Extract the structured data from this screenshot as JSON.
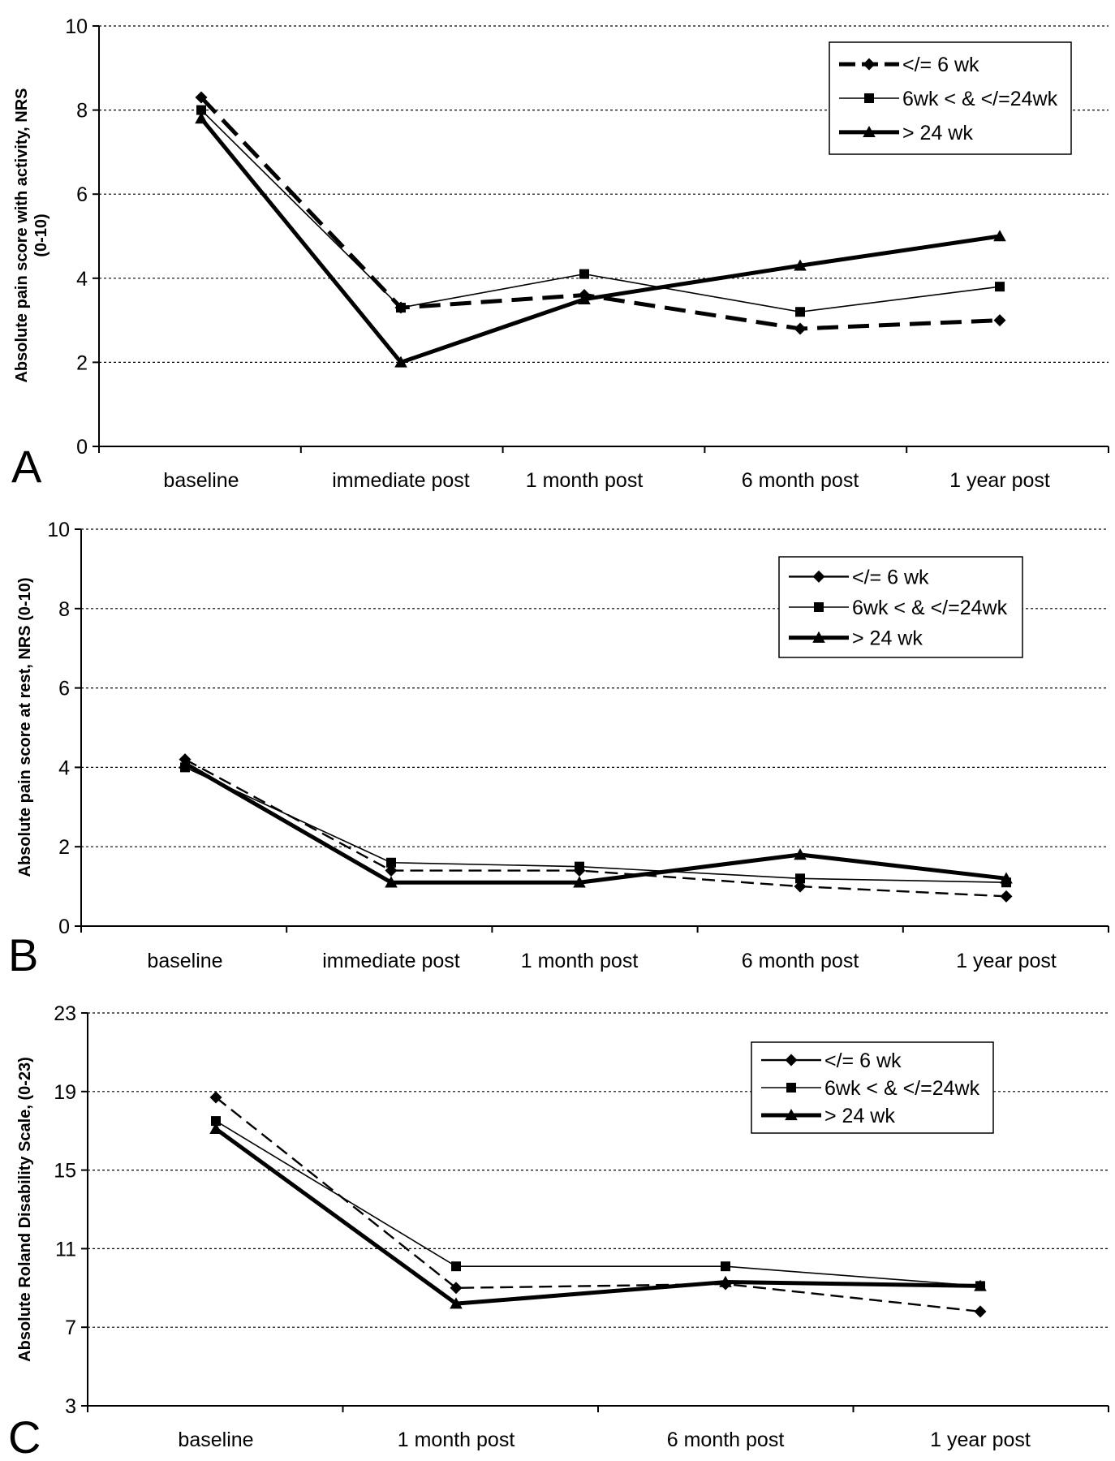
{
  "chart_data": [
    {
      "type": "line",
      "panel_label": "A",
      "ylabel": "Absolute pain score with activity, NRS (0-10)",
      "ylabel_lines": [
        "Absolute pain score with activity, NRS",
        "(0-10)"
      ],
      "categories": [
        "baseline",
        "immediate post",
        "1 month post",
        "6 month post",
        "1 year post"
      ],
      "ylim": [
        0,
        10
      ],
      "yticks": [
        0,
        2,
        4,
        6,
        8,
        10
      ],
      "grid": "horizontal dotted",
      "legend_position": "top-right",
      "series": [
        {
          "name": "</= 6 wk",
          "values": [
            8.3,
            3.3,
            3.6,
            2.8,
            3.0
          ],
          "marker": "diamond",
          "dash": "dashed",
          "width": "thick"
        },
        {
          "name": "6wk < & </=24wk",
          "values": [
            8.0,
            3.3,
            4.1,
            3.2,
            3.8
          ],
          "marker": "square",
          "dash": "solid",
          "width": "thin"
        },
        {
          "name": "> 24 wk",
          "values": [
            7.8,
            2.0,
            3.5,
            4.3,
            5.0
          ],
          "marker": "triangle",
          "dash": "solid",
          "width": "thick"
        }
      ]
    },
    {
      "type": "line",
      "panel_label": "B",
      "ylabel": "Absolute pain score at rest, NRS (0-10)",
      "ylabel_lines": [
        "Absolute pain score at rest, NRS (0-10)"
      ],
      "categories": [
        "baseline",
        "immediate post",
        "1 month post",
        "6 month post",
        "1 year post"
      ],
      "ylim": [
        0,
        10
      ],
      "yticks": [
        0,
        2,
        4,
        6,
        8,
        10
      ],
      "grid": "horizontal dotted",
      "legend_position": "top-right",
      "series": [
        {
          "name": "</= 6 wk",
          "values": [
            4.2,
            1.4,
            1.4,
            1.0,
            0.75
          ],
          "marker": "diamond",
          "dash": "dashed",
          "width": "medium"
        },
        {
          "name": "6wk < & </=24wk",
          "values": [
            4.0,
            1.6,
            1.5,
            1.2,
            1.1
          ],
          "marker": "square",
          "dash": "solid",
          "width": "thin"
        },
        {
          "name": "> 24 wk",
          "values": [
            4.1,
            1.1,
            1.1,
            1.8,
            1.2
          ],
          "marker": "triangle",
          "dash": "solid",
          "width": "thick"
        }
      ]
    },
    {
      "type": "line",
      "panel_label": "C",
      "ylabel": "Absolute Roland Disability Scale, (0-23)",
      "ylabel_lines": [
        "Absolute Roland Disability Scale, (0-23)"
      ],
      "categories": [
        "baseline",
        "1 month post",
        "6 month post",
        "1 year post"
      ],
      "ylim": [
        3,
        23
      ],
      "yticks": [
        3,
        7,
        11,
        15,
        19,
        23
      ],
      "grid": "horizontal dotted",
      "legend_position": "top-right",
      "series": [
        {
          "name": "</= 6 wk",
          "values": [
            18.7,
            9.0,
            9.2,
            7.8
          ],
          "marker": "diamond",
          "dash": "dashed",
          "width": "medium"
        },
        {
          "name": "6wk < & </=24wk",
          "values": [
            17.5,
            10.1,
            10.1,
            9.1
          ],
          "marker": "square",
          "dash": "solid",
          "width": "thin"
        },
        {
          "name": "> 24 wk",
          "values": [
            17.1,
            8.2,
            9.3,
            9.1
          ],
          "marker": "triangle",
          "dash": "solid",
          "width": "thick"
        }
      ]
    }
  ]
}
